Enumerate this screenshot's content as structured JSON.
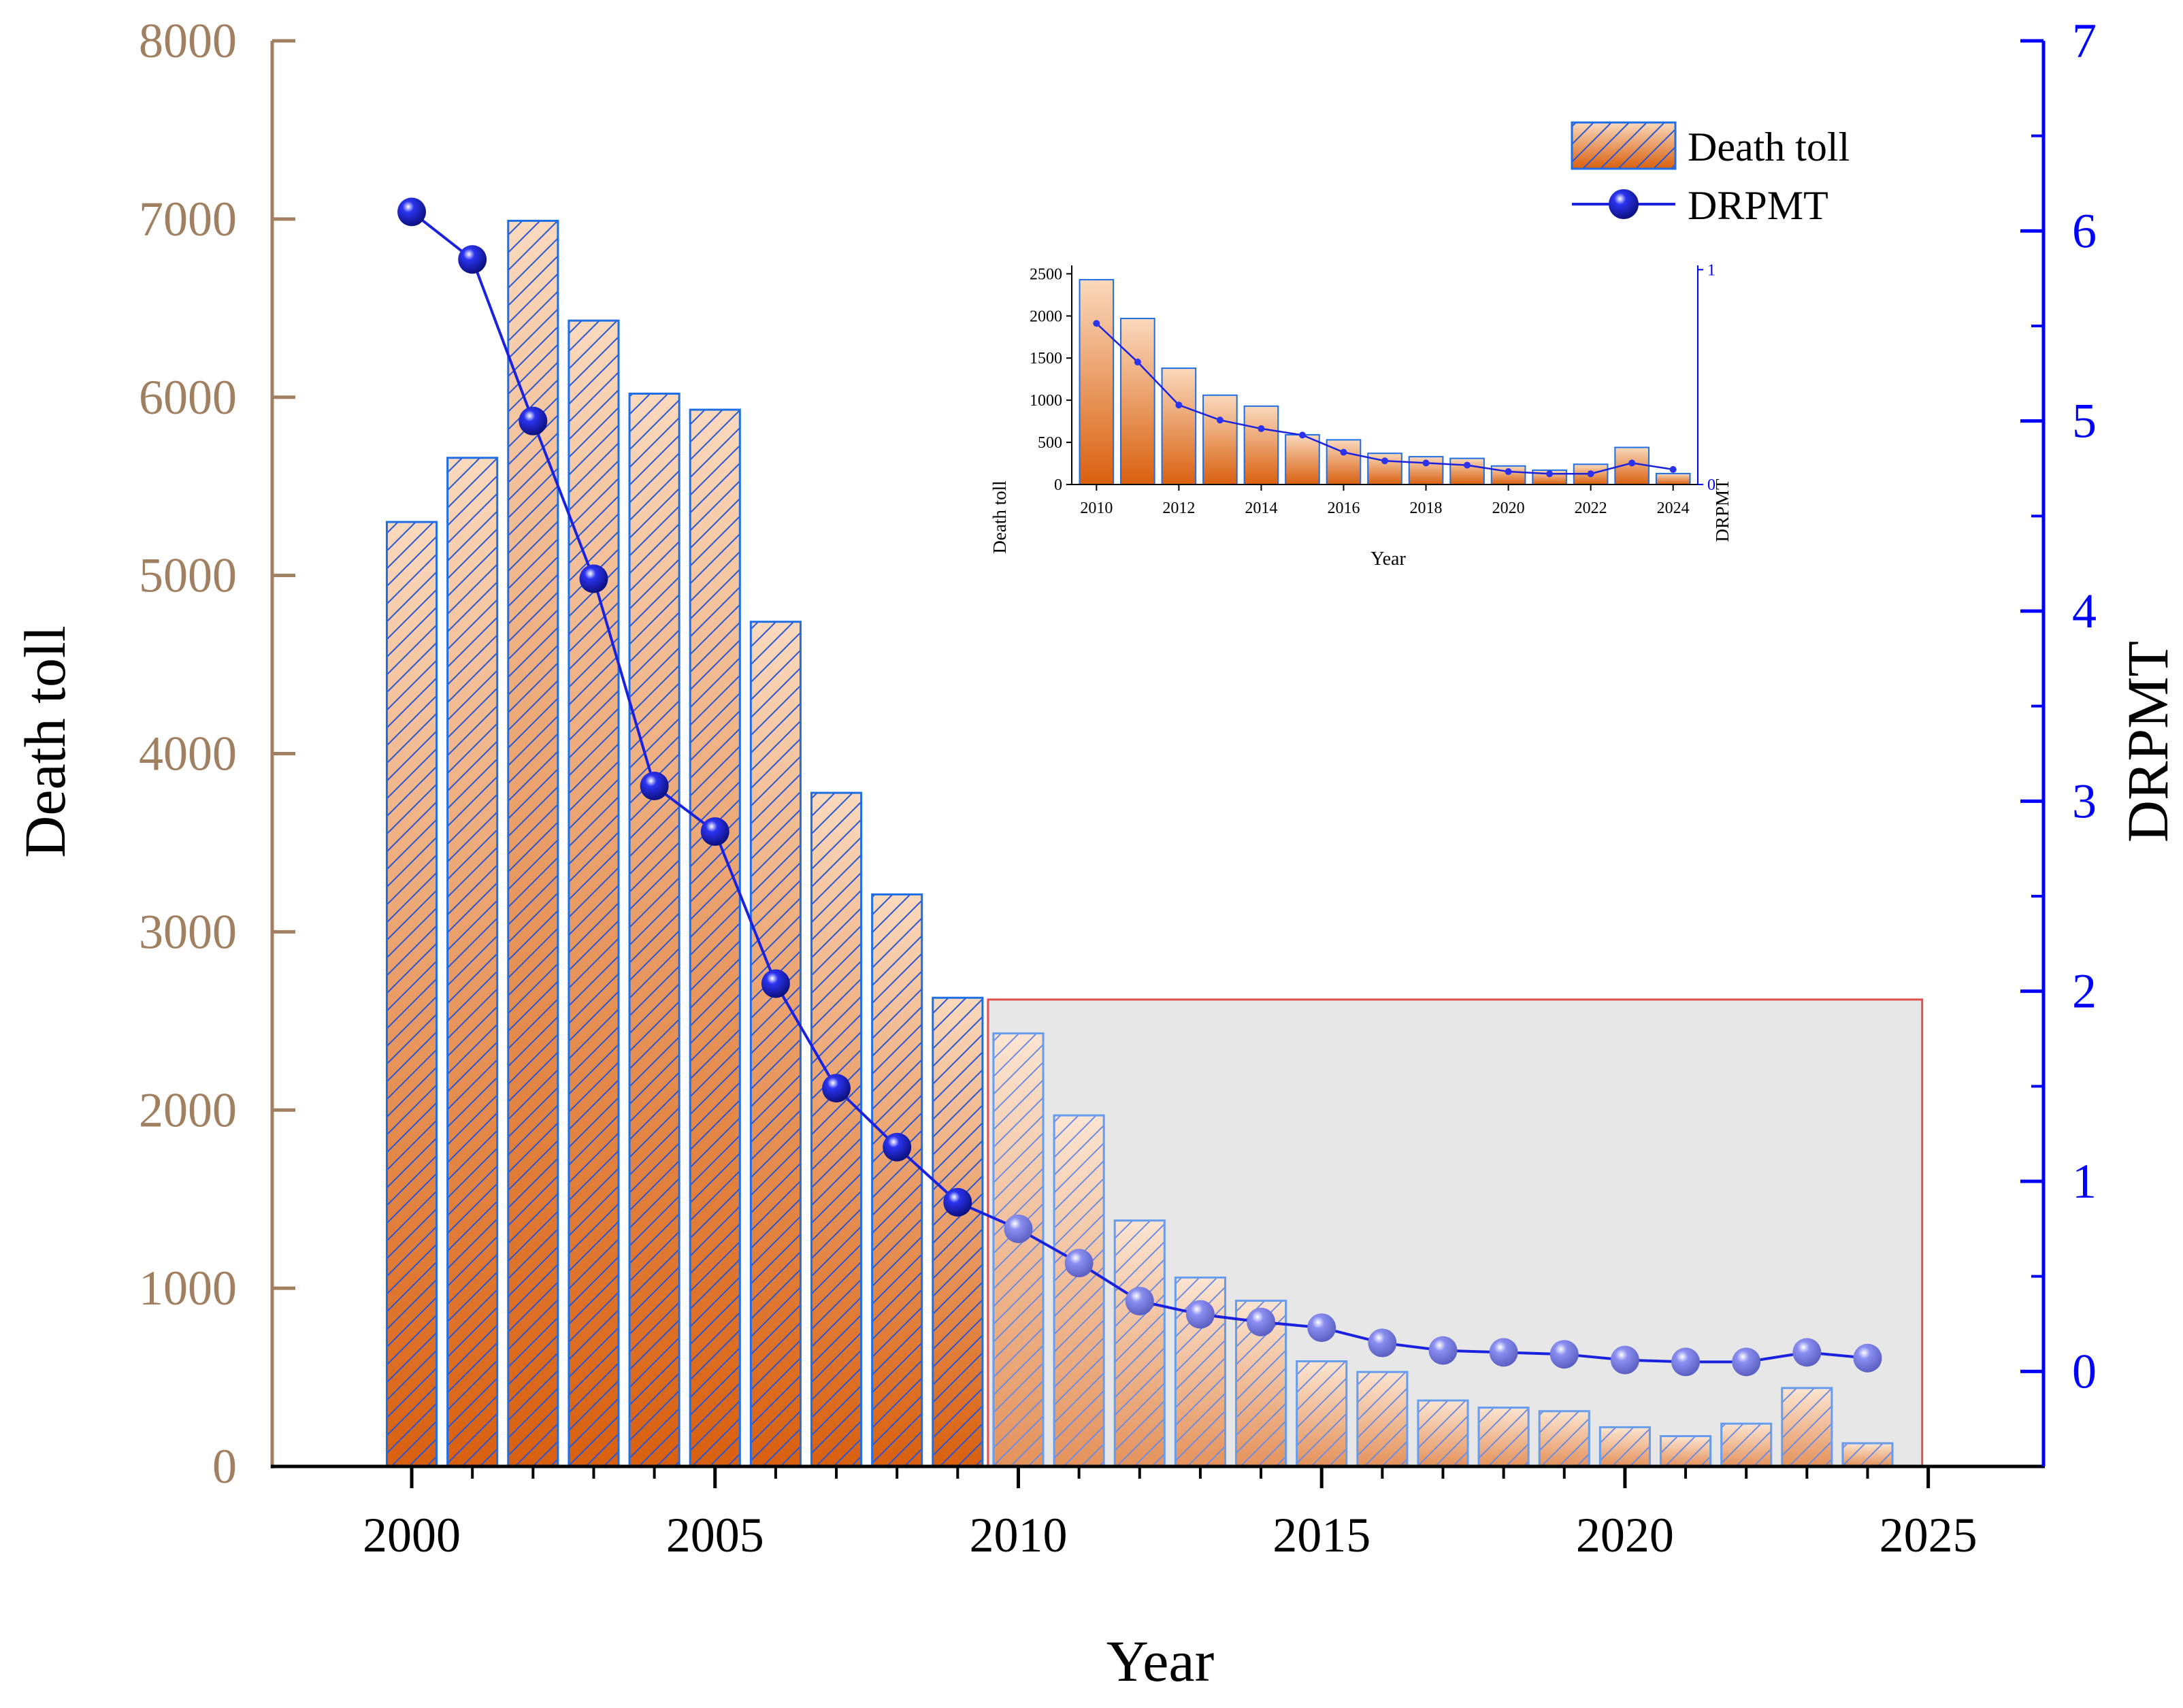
{
  "colors": {
    "left_axis": "#A08060",
    "right_axis": "#0000FF",
    "bar_top": "#FAD9BD",
    "bar_bottom": "#D9600F",
    "bar_edge": "#1E6FE6",
    "hatch": "#2A55D0",
    "line": "#1A22E0",
    "marker": "#2B33F0",
    "marker_faded": "#8A8EF0",
    "inset_box_fill": "#DCDCDC",
    "inset_box_edge": "#E05050",
    "text": "#000000"
  },
  "chart_data": [
    {
      "id": "main",
      "type": "bar+line",
      "xlabel": "Year",
      "ylabel_left": "Death toll",
      "ylabel_right": "DRPMT",
      "x": [
        2000,
        2001,
        2002,
        2003,
        2004,
        2005,
        2006,
        2007,
        2008,
        2009,
        2010,
        2011,
        2012,
        2013,
        2014,
        2015,
        2016,
        2017,
        2018,
        2019,
        2020,
        2021,
        2022,
        2023,
        2024
      ],
      "death_toll": [
        5300,
        5660,
        6990,
        6430,
        6020,
        5930,
        4740,
        3780,
        3210,
        2630,
        2430,
        1970,
        1380,
        1060,
        930,
        590,
        530,
        370,
        330,
        310,
        220,
        170,
        240,
        440,
        130
      ],
      "drpmt": [
        6.1,
        5.85,
        5.0,
        4.17,
        3.08,
        2.84,
        2.04,
        1.49,
        1.18,
        0.89,
        0.75,
        0.57,
        0.37,
        0.3,
        0.26,
        0.23,
        0.15,
        0.11,
        0.1,
        0.09,
        0.06,
        0.05,
        0.05,
        0.1,
        0.07
      ],
      "xlim": [
        1997.7,
        2026.9
      ],
      "ylim_left": [
        0,
        8000
      ],
      "ylim_right": [
        -0.5,
        7
      ],
      "xticks": [
        2000,
        2005,
        2010,
        2015,
        2020,
        2025
      ],
      "yticks_left": [
        0,
        1000,
        2000,
        3000,
        4000,
        5000,
        6000,
        7000,
        8000
      ],
      "yticks_right": [
        0,
        1,
        2,
        3,
        4,
        5,
        6,
        7
      ],
      "legend": [
        "Death toll",
        "DRPMT"
      ],
      "legend_position": "top-right",
      "highlight_range": {
        "x": [
          2009.5,
          2024.9
        ],
        "y": [
          0,
          2620
        ]
      }
    },
    {
      "id": "inset",
      "type": "bar+line",
      "xlabel": "Year",
      "ylabel_left": "Death toll",
      "ylabel_right": "DRPMT",
      "x": [
        2010,
        2011,
        2012,
        2013,
        2014,
        2015,
        2016,
        2017,
        2018,
        2019,
        2020,
        2021,
        2022,
        2023,
        2024
      ],
      "death_toll": [
        2430,
        1970,
        1380,
        1060,
        930,
        590,
        530,
        370,
        330,
        310,
        220,
        170,
        240,
        440,
        130
      ],
      "drpmt": [
        0.75,
        0.57,
        0.37,
        0.3,
        0.26,
        0.23,
        0.15,
        0.11,
        0.1,
        0.09,
        0.06,
        0.05,
        0.05,
        0.1,
        0.07
      ],
      "xlim": [
        2009.4,
        2024.6
      ],
      "ylim_left": [
        0,
        2600
      ],
      "ylim_right": [
        0,
        1.02
      ],
      "xticks": [
        2010,
        2012,
        2014,
        2016,
        2018,
        2020,
        2022,
        2024
      ],
      "yticks_left": [
        0,
        500,
        1000,
        1500,
        2000,
        2500
      ],
      "yticks_right": [
        0,
        1
      ]
    }
  ]
}
